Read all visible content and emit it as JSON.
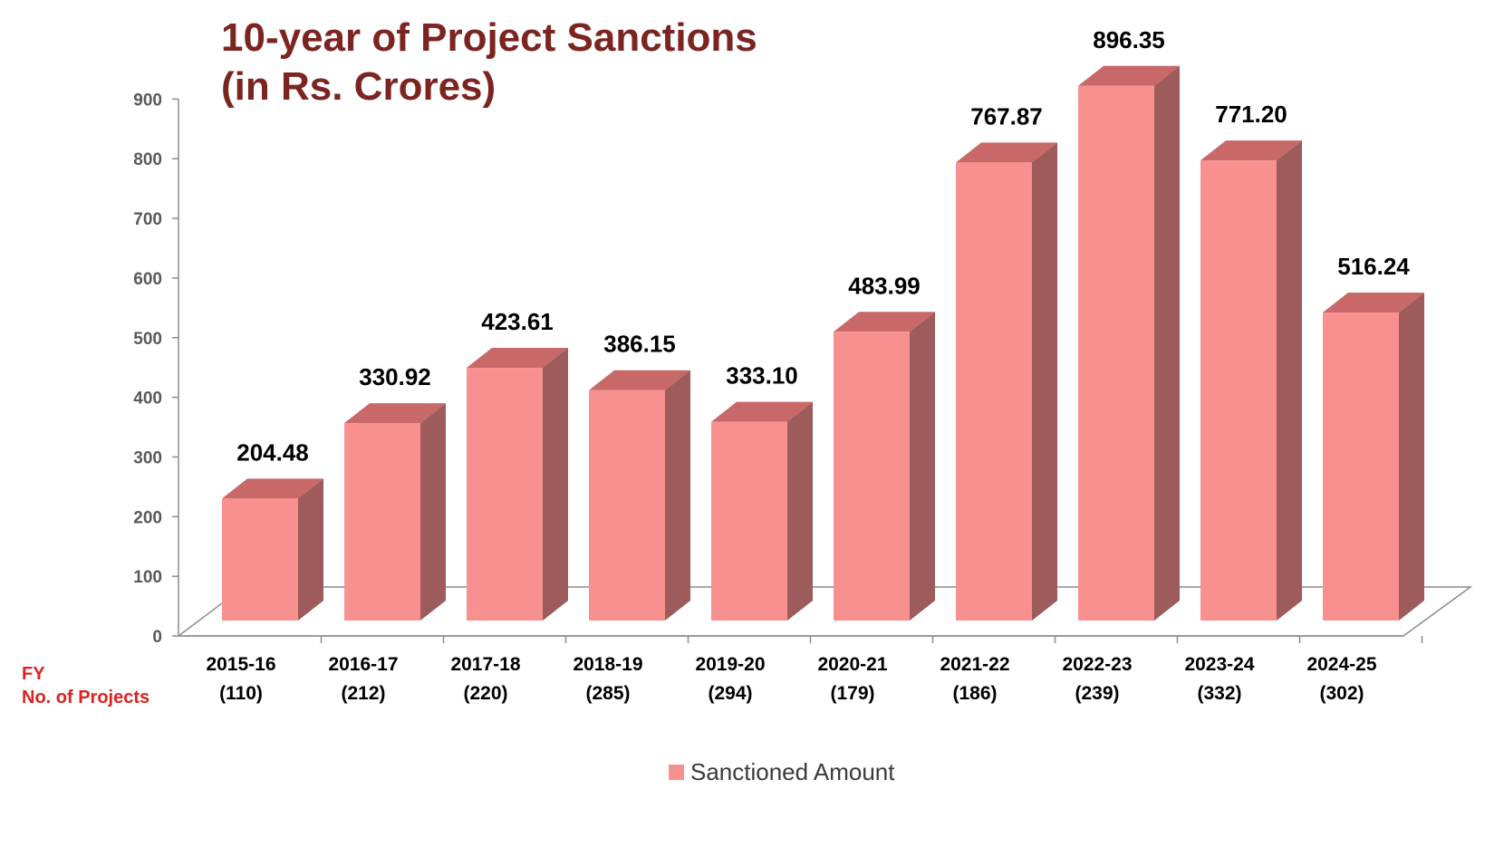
{
  "chart_data": {
    "type": "bar",
    "title_line1": "10-year of Project Sanctions",
    "title_line2": "(in Rs. Crores)",
    "categories": [
      "2015-16",
      "2016-17",
      "2017-18",
      "2018-19",
      "2019-20",
      "2020-21",
      "2021-22",
      "2022-23",
      "2023-24",
      "2024-25"
    ],
    "project_counts": [
      "(110)",
      "(212)",
      "(220)",
      "(285)",
      "(294)",
      "(179)",
      "(186)",
      "(239)",
      "(332)",
      "(302)"
    ],
    "series": [
      {
        "name": "Sanctioned Amount",
        "values": [
          204.48,
          330.92,
          423.61,
          386.15,
          333.1,
          483.99,
          767.87,
          896.35,
          771.2,
          516.24
        ],
        "labels": [
          "204.48",
          "330.92",
          "423.61",
          "386.15",
          "333.10",
          "483.99",
          "767.87",
          "896.35",
          "771.20",
          "516.24"
        ]
      }
    ],
    "yticks": [
      0,
      100,
      200,
      300,
      400,
      500,
      600,
      700,
      800,
      900
    ],
    "ylim": [
      0,
      900
    ],
    "xlabel": "FY",
    "xlabel2": "No. of Projects",
    "legend_position": "bottom",
    "grid": false,
    "style": "3d-column"
  },
  "colors": {
    "bar_front": "#f99090",
    "bar_top": "#c86868",
    "bar_side": "#9d5b5b",
    "title": "#7b2420",
    "side_label": "#e02020",
    "axis": "#8c8c8c"
  }
}
